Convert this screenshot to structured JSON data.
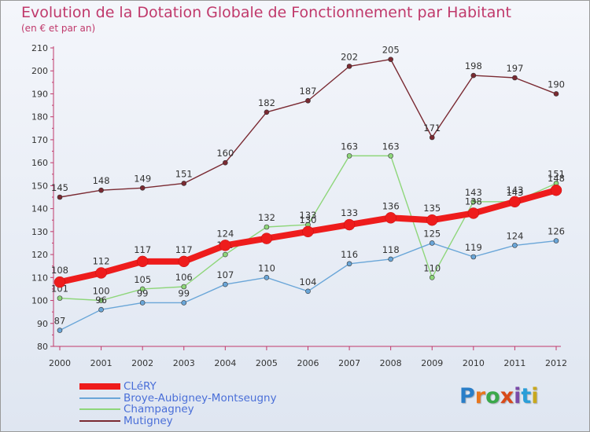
{
  "title": "Evolution de la Dotation Globale de Fonctionnement par Habitant",
  "subtitle": "(en € et par an)",
  "logo": {
    "text": "Proxiti",
    "letters": [
      "P",
      "r",
      "o",
      "x",
      "i",
      "t",
      "i"
    ],
    "colors": [
      "#2a7ec8",
      "#e8761e",
      "#3aa84a",
      "#d84a1a",
      "#7a4aa8",
      "#2a9ed8",
      "#c8a81e"
    ]
  },
  "chart_data": {
    "type": "line",
    "title": "Evolution de la Dotation Globale de Fonctionnement par Habitant",
    "subtitle": "(en € et par an)",
    "xlabel": "",
    "ylabel": "",
    "x": [
      "2000",
      "2001",
      "2002",
      "2003",
      "2004",
      "2005",
      "2006",
      "2007",
      "2008",
      "2009",
      "2010",
      "2011",
      "2012"
    ],
    "ylim": [
      80,
      210
    ],
    "yticks": [
      80,
      90,
      100,
      110,
      120,
      130,
      140,
      150,
      160,
      170,
      180,
      190,
      200,
      210
    ],
    "grid": false,
    "legend_position": "bottom-left",
    "series": [
      {
        "name": "Mutigney",
        "color": "#7a2a32",
        "values": [
          145,
          148,
          149,
          151,
          160,
          182,
          187,
          202,
          205,
          171,
          198,
          197,
          190
        ]
      },
      {
        "name": "Champagney",
        "color": "#8ed67a",
        "values": [
          101,
          100,
          105,
          106,
          120,
          132,
          133,
          163,
          163,
          110,
          143,
          143,
          151
        ]
      },
      {
        "name": "Broye-Aubigney-Montseugny",
        "color": "#6aa6d8",
        "values": [
          87,
          96,
          99,
          99,
          107,
          110,
          104,
          116,
          118,
          125,
          119,
          124,
          126
        ]
      },
      {
        "name": "CLéRY",
        "color": "#ee1c1c",
        "values": [
          108,
          112,
          117,
          117,
          124,
          127,
          130,
          133,
          136,
          135,
          138,
          143,
          148
        ],
        "labels": [
          "108",
          "112",
          "117",
          "117",
          "124",
          "",
          "130",
          "133",
          "136",
          "135",
          "138",
          "143",
          "148"
        ]
      }
    ],
    "legend_order": [
      "CLéRY",
      "Broye-Aubigney-Montseugny",
      "Champagney",
      "Mutigney"
    ]
  }
}
